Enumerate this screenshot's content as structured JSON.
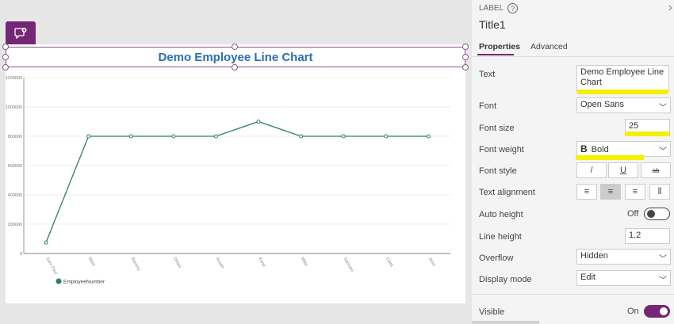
{
  "canvas": {
    "comment_icon": "add-comment-icon"
  },
  "title": {
    "text": "Demo Employee Line Chart",
    "color": "#2a6db5"
  },
  "chart_data": {
    "type": "line",
    "categories": [
      "Sam Paul",
      "Bibin",
      "Rammy",
      "Dhoni",
      "Austin",
      "Kane",
      "Mike",
      "Samson",
      "Clark",
      "John"
    ],
    "series": [
      {
        "name": "EmployeeNumber",
        "values": [
          75000,
          800000,
          800000,
          800000,
          800000,
          900000,
          800000,
          800000,
          800000,
          800000
        ],
        "color": "#2e8060"
      }
    ],
    "ylim": [
      0,
      1200000
    ],
    "yticks": [
      "0",
      "200000",
      "400000",
      "600000",
      "800000",
      "1000000",
      "1200000"
    ],
    "grid": true,
    "legend": "bottom-left"
  },
  "panel": {
    "type_label": "LABEL",
    "control_name": "Title1",
    "tabs": [
      "Properties",
      "Advanced"
    ],
    "props": {
      "text_label": "Text",
      "text_value": "Demo Employee Line Chart",
      "font_label": "Font",
      "font_value": "Open Sans",
      "font_size_label": "Font size",
      "font_size_value": "25",
      "font_weight_label": "Font weight",
      "font_weight_value": "Bold",
      "font_weight_icon": "B",
      "font_style_label": "Font style",
      "font_style_buttons": [
        "/",
        "U",
        "ab"
      ],
      "text_alignment_label": "Text alignment",
      "auto_height_label": "Auto height",
      "auto_height_value": "Off",
      "line_height_label": "Line height",
      "line_height_value": "1.2",
      "overflow_label": "Overflow",
      "overflow_value": "Hidden",
      "display_mode_label": "Display mode",
      "display_mode_value": "Edit",
      "visible_label": "Visible",
      "visible_value": "On"
    },
    "accent": "#742774"
  }
}
